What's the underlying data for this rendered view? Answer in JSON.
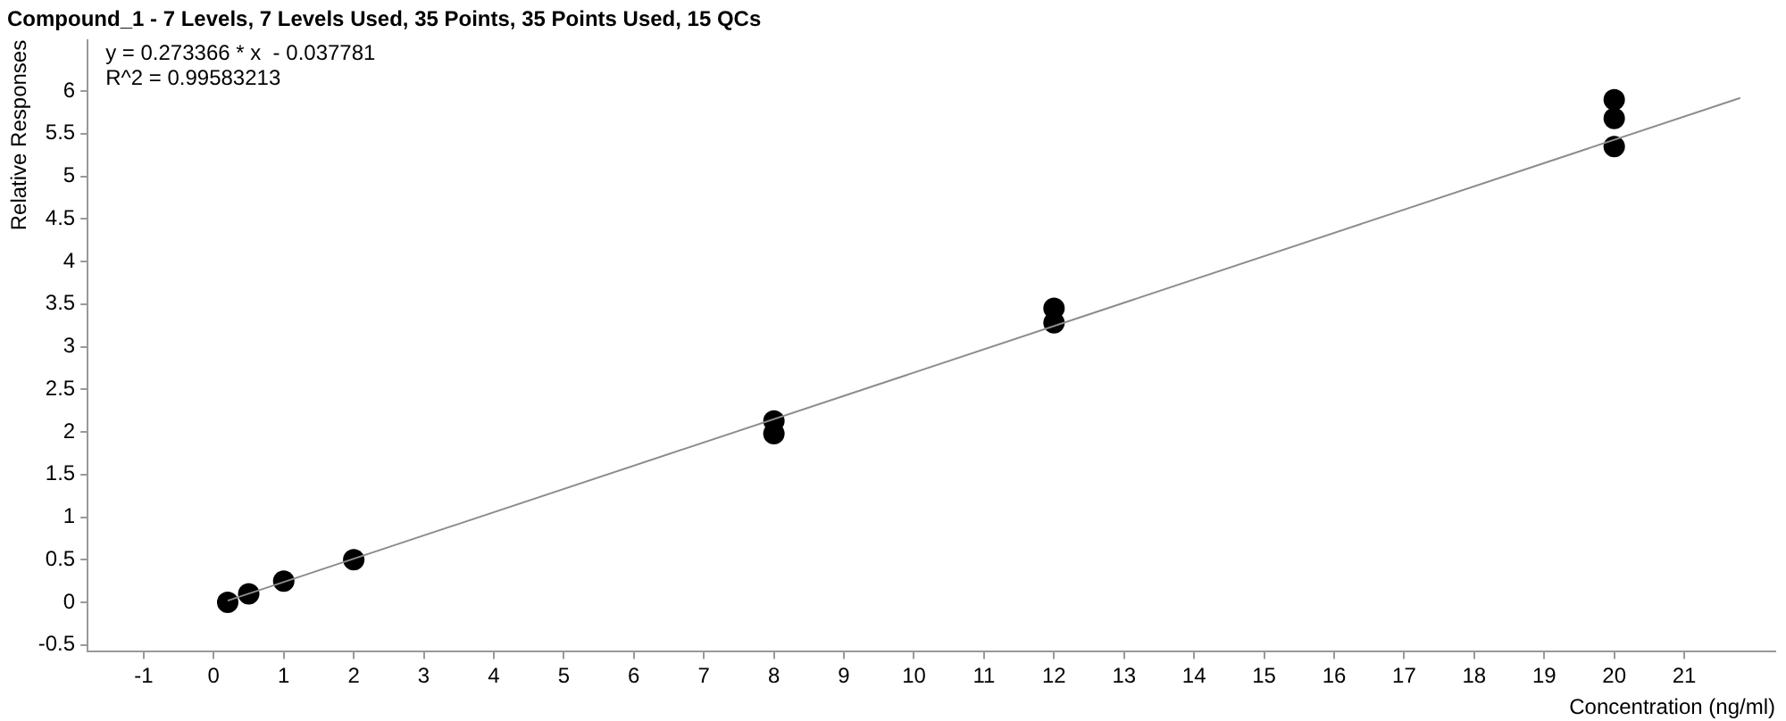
{
  "chart_data": {
    "type": "scatter",
    "title": "Compound_1 - 7 Levels, 7 Levels Used, 35 Points, 35 Points Used, 15 QCs",
    "xlabel": "Concentration (ng/ml)",
    "ylabel": "Relative Responses",
    "annotations": [
      "y = 0.273366 * x  - 0.037781",
      "R^2 = 0.99583213"
    ],
    "xlim": [
      -1.8,
      22.3
    ],
    "xticks": [
      -1,
      0,
      1,
      2,
      3,
      4,
      5,
      6,
      7,
      8,
      9,
      10,
      11,
      12,
      13,
      14,
      15,
      16,
      17,
      18,
      19,
      20,
      21
    ],
    "ylim": [
      -0.58,
      6.6
    ],
    "yticks": [
      -0.5,
      0,
      0.5,
      1,
      1.5,
      2,
      2.5,
      3,
      3.5,
      4,
      4.5,
      5,
      5.5,
      6
    ],
    "grid": false,
    "legend": false,
    "marker": "circle",
    "series": [
      {
        "type": "line",
        "color": "#8c8c8c",
        "x": [
          0.2,
          21.8
        ],
        "values": [
          0.02,
          5.92
        ],
        "marker": "none",
        "line_style": "solid"
      },
      {
        "type": "scatter",
        "color": "#000000",
        "x": [
          0.2,
          0.5,
          1,
          2,
          8,
          8,
          12,
          12,
          20,
          20,
          20
        ],
        "values": [
          0,
          0.1,
          0.25,
          0.5,
          1.98,
          2.13,
          3.28,
          3.45,
          5.35,
          5.68,
          5.9
        ]
      }
    ]
  }
}
